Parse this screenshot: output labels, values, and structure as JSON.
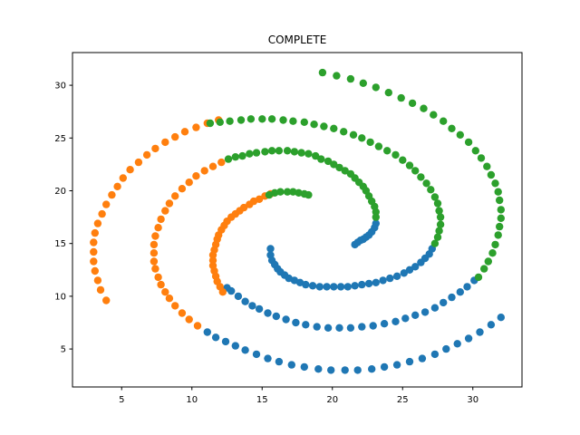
{
  "chart_data": {
    "type": "scatter",
    "title": "COMPLETE",
    "xlabel": "",
    "ylabel": "",
    "xlim": [
      1.5,
      33.5
    ],
    "ylim": [
      1.4,
      33.1
    ],
    "x_ticks": [
      5,
      10,
      15,
      20,
      25,
      30
    ],
    "y_ticks": [
      5,
      10,
      15,
      20,
      25,
      30
    ],
    "grid": false,
    "legend": "none",
    "series": [
      {
        "color": "#1f77b4",
        "points": [
          [
            15.6,
            14.5
          ],
          [
            15.6,
            13.9
          ],
          [
            15.7,
            13.4
          ],
          [
            15.9,
            13.0
          ],
          [
            16.1,
            12.6
          ],
          [
            16.3,
            12.3
          ],
          [
            16.6,
            12.0
          ],
          [
            16.9,
            11.7
          ],
          [
            17.3,
            11.5
          ],
          [
            17.7,
            11.3
          ],
          [
            18.1,
            11.1
          ],
          [
            18.6,
            11.0
          ],
          [
            19.1,
            10.9
          ],
          [
            19.6,
            10.9
          ],
          [
            20.1,
            10.9
          ],
          [
            20.6,
            10.9
          ],
          [
            21.1,
            10.9
          ],
          [
            21.6,
            11.0
          ],
          [
            22.1,
            11.1
          ],
          [
            22.6,
            11.2
          ],
          [
            23.1,
            11.3
          ],
          [
            23.6,
            11.5
          ],
          [
            24.1,
            11.7
          ],
          [
            24.6,
            11.9
          ],
          [
            25.1,
            12.2
          ],
          [
            25.5,
            12.5
          ],
          [
            25.9,
            12.8
          ],
          [
            26.3,
            13.2
          ],
          [
            26.6,
            13.6
          ],
          [
            26.9,
            14.0
          ],
          [
            27.1,
            14.5
          ],
          [
            21.6,
            14.9
          ],
          [
            21.8,
            15.1
          ],
          [
            22.0,
            15.3
          ],
          [
            22.2,
            15.4
          ],
          [
            22.4,
            15.6
          ],
          [
            22.6,
            15.8
          ],
          [
            22.8,
            16.1
          ],
          [
            23.0,
            16.5
          ],
          [
            23.1,
            16.9
          ],
          [
            12.5,
            10.8
          ],
          [
            12.8,
            10.5
          ],
          [
            13.3,
            10.0
          ],
          [
            13.8,
            9.5
          ],
          [
            14.3,
            9.1
          ],
          [
            14.8,
            8.8
          ],
          [
            15.4,
            8.4
          ],
          [
            16.0,
            8.1
          ],
          [
            16.7,
            7.8
          ],
          [
            17.4,
            7.5
          ],
          [
            18.1,
            7.3
          ],
          [
            18.9,
            7.1
          ],
          [
            19.7,
            7.0
          ],
          [
            20.5,
            7.0
          ],
          [
            21.3,
            7.0
          ],
          [
            22.1,
            7.1
          ],
          [
            22.9,
            7.2
          ],
          [
            23.7,
            7.4
          ],
          [
            24.5,
            7.6
          ],
          [
            25.2,
            7.9
          ],
          [
            25.9,
            8.2
          ],
          [
            26.6,
            8.5
          ],
          [
            27.3,
            8.9
          ],
          [
            27.9,
            9.4
          ],
          [
            28.5,
            9.9
          ],
          [
            29.1,
            10.4
          ],
          [
            29.6,
            10.9
          ],
          [
            30.1,
            11.5
          ],
          [
            11.1,
            6.6
          ],
          [
            11.7,
            6.1
          ],
          [
            12.4,
            5.7
          ],
          [
            13.1,
            5.3
          ],
          [
            13.8,
            4.9
          ],
          [
            14.6,
            4.5
          ],
          [
            15.4,
            4.1
          ],
          [
            16.2,
            3.8
          ],
          [
            17.1,
            3.5
          ],
          [
            18.0,
            3.3
          ],
          [
            19.0,
            3.1
          ],
          [
            19.9,
            3.0
          ],
          [
            20.9,
            3.0
          ],
          [
            21.8,
            3.0
          ],
          [
            22.8,
            3.1
          ],
          [
            23.7,
            3.3
          ],
          [
            24.6,
            3.5
          ],
          [
            25.5,
            3.8
          ],
          [
            26.4,
            4.1
          ],
          [
            27.3,
            4.5
          ],
          [
            28.1,
            5.0
          ],
          [
            28.9,
            5.5
          ],
          [
            29.7,
            6.0
          ],
          [
            30.5,
            6.6
          ],
          [
            31.3,
            7.3
          ],
          [
            32.0,
            8.0
          ]
        ]
      },
      {
        "color": "#ff7f0e",
        "points": [
          [
            3.9,
            9.6
          ],
          [
            3.5,
            10.6
          ],
          [
            3.3,
            11.5
          ],
          [
            3.1,
            12.4
          ],
          [
            3.0,
            13.3
          ],
          [
            3.0,
            14.2
          ],
          [
            3.0,
            15.1
          ],
          [
            3.1,
            16.0
          ],
          [
            3.3,
            16.9
          ],
          [
            3.6,
            17.8
          ],
          [
            3.9,
            18.7
          ],
          [
            4.3,
            19.6
          ],
          [
            4.7,
            20.4
          ],
          [
            5.1,
            21.2
          ],
          [
            5.6,
            22.0
          ],
          [
            6.2,
            22.7
          ],
          [
            6.8,
            23.4
          ],
          [
            7.4,
            24.0
          ],
          [
            8.1,
            24.6
          ],
          [
            8.8,
            25.1
          ],
          [
            9.5,
            25.6
          ],
          [
            10.3,
            26.0
          ],
          [
            11.1,
            26.4
          ],
          [
            11.9,
            26.7
          ],
          [
            10.4,
            7.2
          ],
          [
            9.8,
            7.8
          ],
          [
            9.3,
            8.4
          ],
          [
            8.8,
            9.1
          ],
          [
            8.4,
            9.8
          ],
          [
            8.1,
            10.4
          ],
          [
            7.8,
            11.1
          ],
          [
            7.6,
            11.8
          ],
          [
            7.4,
            12.6
          ],
          [
            7.3,
            13.3
          ],
          [
            7.3,
            14.1
          ],
          [
            7.3,
            14.9
          ],
          [
            7.4,
            15.7
          ],
          [
            7.6,
            16.5
          ],
          [
            7.8,
            17.3
          ],
          [
            8.1,
            18.1
          ],
          [
            8.4,
            18.8
          ],
          [
            8.8,
            19.5
          ],
          [
            9.3,
            20.2
          ],
          [
            9.8,
            20.8
          ],
          [
            10.3,
            21.4
          ],
          [
            10.9,
            21.9
          ],
          [
            11.5,
            22.3
          ],
          [
            12.1,
            22.7
          ],
          [
            12.2,
            10.4
          ],
          [
            12.0,
            10.9
          ],
          [
            11.8,
            11.4
          ],
          [
            11.7,
            11.9
          ],
          [
            11.6,
            12.4
          ],
          [
            11.5,
            12.9
          ],
          [
            11.5,
            13.4
          ],
          [
            11.5,
            13.9
          ],
          [
            11.6,
            14.4
          ],
          [
            11.7,
            14.9
          ],
          [
            11.8,
            15.4
          ],
          [
            11.9,
            15.8
          ],
          [
            12.1,
            16.3
          ],
          [
            12.3,
            16.7
          ],
          [
            12.5,
            17.1
          ],
          [
            12.8,
            17.5
          ],
          [
            13.1,
            17.8
          ],
          [
            13.4,
            18.1
          ],
          [
            13.7,
            18.4
          ],
          [
            14.1,
            18.7
          ],
          [
            14.4,
            19.0
          ],
          [
            14.8,
            19.2
          ],
          [
            15.2,
            19.5
          ],
          [
            15.6,
            19.7
          ]
        ]
      },
      {
        "color": "#2ca02c",
        "points": [
          [
            15.5,
            19.6
          ],
          [
            15.9,
            19.8
          ],
          [
            16.3,
            19.9
          ],
          [
            16.8,
            19.9
          ],
          [
            17.2,
            19.9
          ],
          [
            17.6,
            19.8
          ],
          [
            18.0,
            19.7
          ],
          [
            18.3,
            19.6
          ],
          [
            23.1,
            17.5
          ],
          [
            23.1,
            18.0
          ],
          [
            23.0,
            18.5
          ],
          [
            22.8,
            19.0
          ],
          [
            22.6,
            19.5
          ],
          [
            22.4,
            20.0
          ],
          [
            22.2,
            20.4
          ],
          [
            21.9,
            20.8
          ],
          [
            21.6,
            21.2
          ],
          [
            21.3,
            21.6
          ],
          [
            20.9,
            21.9
          ],
          [
            20.5,
            22.2
          ],
          [
            20.1,
            22.5
          ],
          [
            19.7,
            22.8
          ],
          [
            19.2,
            23.0
          ],
          [
            18.8,
            23.3
          ],
          [
            18.3,
            23.5
          ],
          [
            17.8,
            23.6
          ],
          [
            17.3,
            23.7
          ],
          [
            16.8,
            23.8
          ],
          [
            16.2,
            23.8
          ],
          [
            15.7,
            23.8
          ],
          [
            15.2,
            23.7
          ],
          [
            14.6,
            23.6
          ],
          [
            14.1,
            23.5
          ],
          [
            13.6,
            23.3
          ],
          [
            13.1,
            23.2
          ],
          [
            12.6,
            23.0
          ],
          [
            27.3,
            15.0
          ],
          [
            27.5,
            15.6
          ],
          [
            27.6,
            16.2
          ],
          [
            27.7,
            16.8
          ],
          [
            27.7,
            17.5
          ],
          [
            27.6,
            18.1
          ],
          [
            27.5,
            18.8
          ],
          [
            27.3,
            19.4
          ],
          [
            27.0,
            20.1
          ],
          [
            26.7,
            20.7
          ],
          [
            26.3,
            21.3
          ],
          [
            25.9,
            21.9
          ],
          [
            25.5,
            22.4
          ],
          [
            25.0,
            22.9
          ],
          [
            24.5,
            23.4
          ],
          [
            23.9,
            23.8
          ],
          [
            23.3,
            24.2
          ],
          [
            22.7,
            24.6
          ],
          [
            22.1,
            25.0
          ],
          [
            21.5,
            25.3
          ],
          [
            20.8,
            25.6
          ],
          [
            20.1,
            25.9
          ],
          [
            19.4,
            26.1
          ],
          [
            18.7,
            26.3
          ],
          [
            18.0,
            26.5
          ],
          [
            17.2,
            26.6
          ],
          [
            16.5,
            26.7
          ],
          [
            15.7,
            26.8
          ],
          [
            15.0,
            26.8
          ],
          [
            14.2,
            26.8
          ],
          [
            13.5,
            26.7
          ],
          [
            12.7,
            26.6
          ],
          [
            12.0,
            26.5
          ],
          [
            11.3,
            26.4
          ],
          [
            30.4,
            11.8
          ],
          [
            30.8,
            12.6
          ],
          [
            31.1,
            13.3
          ],
          [
            31.4,
            14.1
          ],
          [
            31.6,
            14.9
          ],
          [
            31.8,
            15.8
          ],
          [
            31.9,
            16.6
          ],
          [
            32.0,
            17.4
          ],
          [
            32.0,
            18.2
          ],
          [
            31.9,
            19.1
          ],
          [
            31.8,
            19.9
          ],
          [
            31.6,
            20.7
          ],
          [
            31.3,
            21.5
          ],
          [
            31.0,
            22.3
          ],
          [
            30.6,
            23.1
          ],
          [
            30.2,
            23.8
          ],
          [
            29.7,
            24.6
          ],
          [
            29.1,
            25.3
          ],
          [
            28.5,
            25.9
          ],
          [
            27.9,
            26.6
          ],
          [
            27.2,
            27.2
          ],
          [
            26.5,
            27.8
          ],
          [
            25.7,
            28.3
          ],
          [
            24.9,
            28.8
          ],
          [
            24.0,
            29.3
          ],
          [
            23.1,
            29.8
          ],
          [
            22.2,
            30.2
          ],
          [
            21.3,
            30.6
          ],
          [
            20.3,
            30.9
          ],
          [
            19.3,
            31.2
          ]
        ]
      }
    ]
  }
}
